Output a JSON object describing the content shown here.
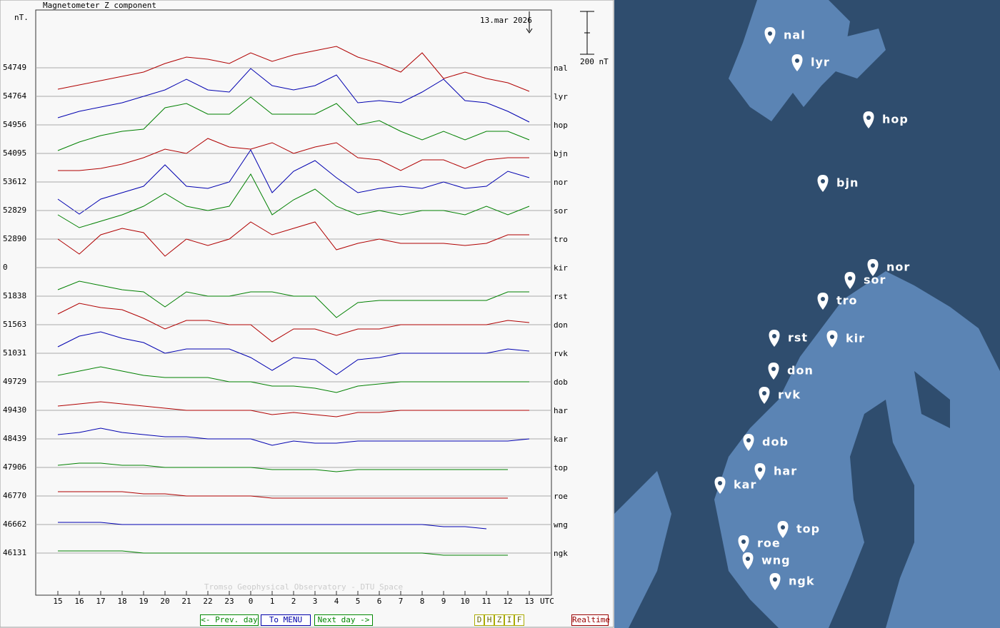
{
  "chart_data": {
    "type": "line",
    "title": "Magnetometer Z component",
    "y_unit": "nT.",
    "date": "13.mar 2026",
    "x_unit": "UTC",
    "credit": "Tromso Geophysical Observatory - DTU Space",
    "scale_bar": {
      "value": 200,
      "label": "200 nT"
    },
    "categories": [
      "15",
      "16",
      "17",
      "18",
      "19",
      "20",
      "21",
      "22",
      "23",
      "0",
      "1",
      "2",
      "3",
      "4",
      "5",
      "6",
      "7",
      "8",
      "9",
      "10",
      "11",
      "12",
      "13"
    ],
    "series": [
      {
        "name": "nal",
        "baseline": 54749,
        "color": "#b00000",
        "values": [
          -100,
          -80,
          -60,
          -40,
          -20,
          20,
          50,
          40,
          20,
          70,
          30,
          60,
          80,
          100,
          50,
          20,
          -20,
          70,
          -50,
          -20,
          -50,
          -70,
          -110
        ]
      },
      {
        "name": "lyr",
        "baseline": 54764,
        "color": "#0000b0",
        "values": [
          -100,
          -70,
          -50,
          -30,
          0,
          30,
          80,
          30,
          20,
          130,
          50,
          30,
          50,
          100,
          -30,
          -20,
          -30,
          20,
          80,
          -20,
          -30,
          -70,
          -120
        ]
      },
      {
        "name": "hop",
        "baseline": 54956,
        "color": "#008000",
        "values": [
          -120,
          -80,
          -50,
          -30,
          -20,
          80,
          100,
          50,
          50,
          130,
          50,
          50,
          50,
          100,
          0,
          20,
          -30,
          -70,
          -30,
          -70,
          -30,
          -30,
          -70
        ]
      },
      {
        "name": "bjn",
        "baseline": 54095,
        "color": "#b00000",
        "values": [
          -80,
          -80,
          -70,
          -50,
          -20,
          20,
          0,
          70,
          30,
          20,
          50,
          0,
          30,
          50,
          -20,
          -30,
          -80,
          -30,
          -30,
          -70,
          -30,
          -20,
          -20
        ]
      },
      {
        "name": "nor",
        "baseline": 53612,
        "color": "#0000b0",
        "values": [
          -80,
          -150,
          -80,
          -50,
          -20,
          80,
          -20,
          -30,
          0,
          150,
          -50,
          50,
          100,
          20,
          -50,
          -30,
          -20,
          -30,
          0,
          -30,
          -20,
          50,
          20
        ]
      },
      {
        "name": "sor",
        "baseline": 52829,
        "color": "#008000",
        "values": [
          -20,
          -80,
          -50,
          -20,
          20,
          80,
          20,
          0,
          20,
          170,
          -20,
          50,
          100,
          20,
          -20,
          0,
          -20,
          0,
          0,
          -20,
          20,
          -20,
          20
        ]
      },
      {
        "name": "tro",
        "baseline": 52890,
        "color": "#b00000",
        "values": [
          0,
          -70,
          20,
          50,
          30,
          -80,
          0,
          -30,
          0,
          80,
          20,
          50,
          80,
          -50,
          -20,
          0,
          -20,
          -20,
          -20,
          -30,
          -20,
          20,
          20
        ]
      },
      {
        "name": "kir",
        "baseline": 0,
        "color": "#0000b0",
        "values": [
          null,
          null,
          null,
          null,
          null,
          null,
          null,
          null,
          null,
          null,
          null,
          null,
          null,
          null,
          null,
          null,
          null,
          null,
          null,
          null,
          null,
          null,
          null
        ]
      },
      {
        "name": "rst",
        "baseline": 51838,
        "color": "#008000",
        "values": [
          30,
          70,
          50,
          30,
          20,
          -50,
          20,
          0,
          0,
          20,
          20,
          0,
          0,
          -100,
          -30,
          -20,
          -20,
          -20,
          -20,
          -20,
          -20,
          20,
          20
        ]
      },
      {
        "name": "don",
        "baseline": 51563,
        "color": "#b00000",
        "values": [
          50,
          100,
          80,
          70,
          30,
          -20,
          20,
          20,
          0,
          0,
          -80,
          -20,
          -20,
          -50,
          -20,
          -20,
          0,
          0,
          0,
          0,
          0,
          20,
          10
        ]
      },
      {
        "name": "rvk",
        "baseline": 51031,
        "color": "#0000b0",
        "values": [
          30,
          80,
          100,
          70,
          50,
          0,
          20,
          20,
          20,
          -20,
          -80,
          -20,
          -30,
          -100,
          -30,
          -20,
          0,
          0,
          0,
          0,
          0,
          20,
          10
        ]
      },
      {
        "name": "dob",
        "baseline": 49729,
        "color": "#008000",
        "values": [
          30,
          50,
          70,
          50,
          30,
          20,
          20,
          20,
          0,
          0,
          -20,
          -20,
          -30,
          -50,
          -20,
          -10,
          0,
          0,
          0,
          0,
          0,
          0,
          0
        ]
      },
      {
        "name": "har",
        "baseline": 49430,
        "color": "#b00000",
        "values": [
          20,
          30,
          40,
          30,
          20,
          10,
          0,
          0,
          0,
          0,
          -20,
          -10,
          -20,
          -30,
          -10,
          -10,
          0,
          0,
          0,
          0,
          0,
          0,
          0
        ]
      },
      {
        "name": "kar",
        "baseline": 48439,
        "color": "#0000b0",
        "values": [
          20,
          30,
          50,
          30,
          20,
          10,
          10,
          0,
          0,
          0,
          -30,
          -10,
          -20,
          -20,
          -10,
          -10,
          -10,
          -10,
          -10,
          -10,
          -10,
          -10,
          0
        ]
      },
      {
        "name": "top",
        "baseline": 47906,
        "color": "#008000",
        "values": [
          10,
          20,
          20,
          10,
          10,
          0,
          0,
          0,
          0,
          0,
          -10,
          -10,
          -10,
          -20,
          -10,
          -10,
          -10,
          -10,
          -10,
          -10,
          -10,
          -10,
          null
        ]
      },
      {
        "name": "roe",
        "baseline": 46770,
        "color": "#b00000",
        "values": [
          20,
          20,
          20,
          20,
          10,
          10,
          0,
          0,
          0,
          0,
          -10,
          -10,
          -10,
          -10,
          -10,
          -10,
          -10,
          -10,
          -10,
          -10,
          -10,
          -10,
          null
        ]
      },
      {
        "name": "wng",
        "baseline": 46662,
        "color": "#0000b0",
        "values": [
          10,
          10,
          10,
          0,
          0,
          0,
          0,
          0,
          0,
          0,
          0,
          0,
          0,
          0,
          0,
          0,
          0,
          0,
          -10,
          -10,
          -20,
          null,
          null
        ]
      },
      {
        "name": "ngk",
        "baseline": 46131,
        "color": "#008000",
        "values": [
          10,
          10,
          10,
          10,
          0,
          0,
          0,
          0,
          0,
          0,
          0,
          0,
          0,
          0,
          0,
          0,
          0,
          0,
          -10,
          -10,
          -10,
          -10,
          null
        ]
      }
    ]
  },
  "ui": {
    "buttons": [
      "<- Prev. day",
      "To MENU",
      "Next day ->"
    ],
    "components": [
      "D",
      "H",
      "Z",
      "I",
      "F"
    ],
    "realtime": "Realtime"
  },
  "map": {
    "stations": [
      "nal",
      "lyr",
      "hop",
      "bjn",
      "nor",
      "sor",
      "tro",
      "rst",
      "kir",
      "don",
      "rvk",
      "dob",
      "har",
      "kar",
      "top",
      "roe",
      "wng",
      "ngk"
    ]
  }
}
